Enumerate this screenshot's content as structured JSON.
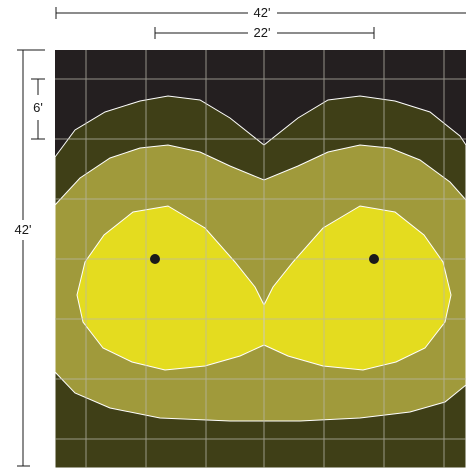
{
  "dimensions": {
    "overall_width": "42'",
    "inner_spacing": "22'",
    "grid_spacing": "6'",
    "overall_height": "42'"
  },
  "colors": {
    "background_dark": "#241f20",
    "contour_outer": "#3f3f17",
    "contour_middle": "#a09a3b",
    "contour_inner": "#e4dc1f",
    "grid_line": "#b9b8aa",
    "contour_edge": "#ffffff",
    "fixture_dot": "#1a1a1a",
    "dimension_line": "#1a1a1a"
  }
}
